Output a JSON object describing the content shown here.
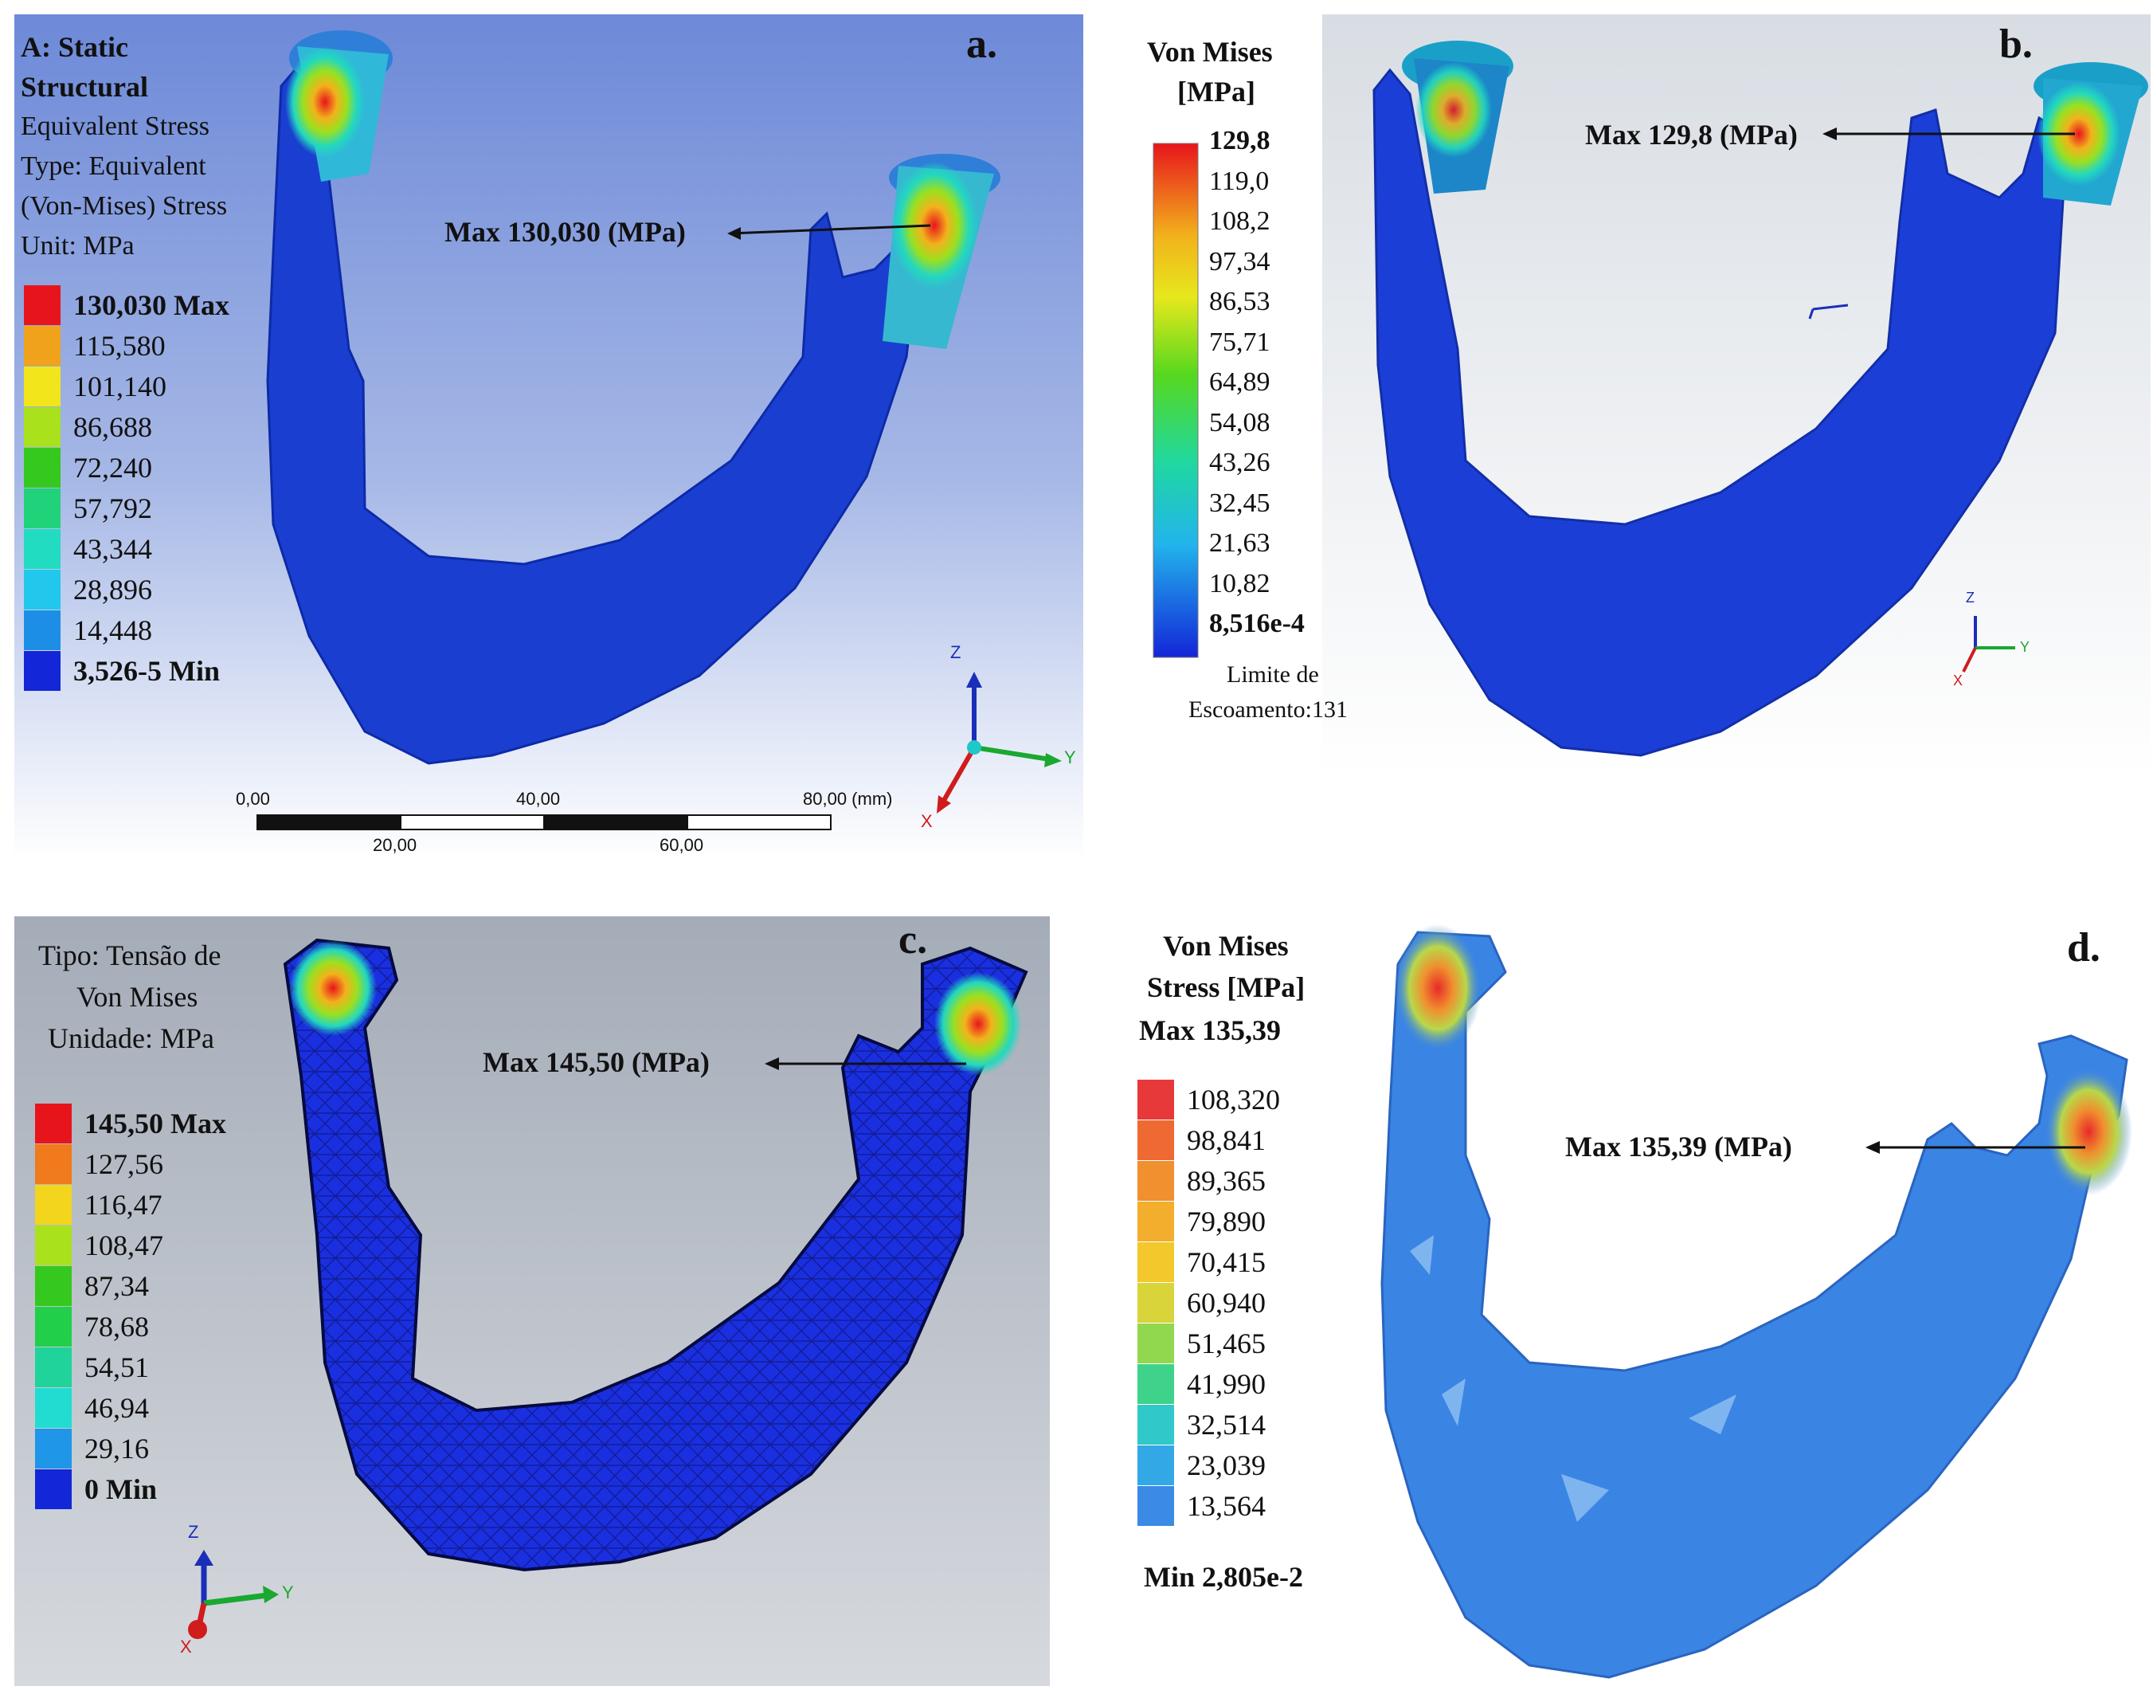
{
  "panels": {
    "a": {
      "letter": "a.",
      "title_line1": "A: Static",
      "title_line2": "Structural",
      "subtitle_line1": "Equivalent Stress",
      "subtitle_line2": "Type: Equivalent",
      "subtitle_line3": "(Von-Mises) Stress",
      "subtitle_line4": "Unit: MPa",
      "legend": [
        {
          "label": "130,030 Max",
          "color": "#e8141c"
        },
        {
          "label": "115,580",
          "color": "#f0a21c"
        },
        {
          "label": "101,140",
          "color": "#f2e51c"
        },
        {
          "label": "86,688",
          "color": "#a9e21c"
        },
        {
          "label": "72,240",
          "color": "#35c81e"
        },
        {
          "label": "57,792",
          "color": "#20d37a"
        },
        {
          "label": "43,344",
          "color": "#22dcc2"
        },
        {
          "label": "28,896",
          "color": "#21c8ec"
        },
        {
          "label": "14,448",
          "color": "#1d8ee6"
        },
        {
          "label": "3,526-5 Min",
          "color": "#1326d8"
        }
      ],
      "max_label": "Max 130,030 (MPa)",
      "scale": {
        "top_ticks": [
          "0,00",
          "40,00",
          "80,00 (mm)"
        ],
        "bottom_ticks": [
          "20,00",
          "60,00"
        ]
      },
      "axes": {
        "z": "Z",
        "y": "Y",
        "x": "X"
      },
      "bg_color": "#6f8fd6",
      "mesh_color": "#1a3fd0"
    },
    "b": {
      "letter": "b.",
      "legend_title_line1": "Von Mises",
      "legend_title_line2": "[MPa]",
      "ticks": [
        "129,8",
        "119,0",
        "108,2",
        "97,34",
        "86,53",
        "75,71",
        "64,89",
        "54,08",
        "43,26",
        "32,45",
        "21,63",
        "10,82",
        "8,516e-4"
      ],
      "limit_line1": "Limite de",
      "limit_line2": "Escoamento:131",
      "max_label": "Max 129,8 (MPa)",
      "axes": {
        "z": "Z",
        "y": "Y",
        "x": "X"
      },
      "mesh_color": "#1b3fd6"
    },
    "c": {
      "letter": "c.",
      "title_line1": "Tipo: Tensão de",
      "title_line2": "Von Mises",
      "title_line3": "Unidade: MPa",
      "legend": [
        {
          "label": "145,50 Max",
          "color": "#e8141c"
        },
        {
          "label": "127,56",
          "color": "#f07a1c"
        },
        {
          "label": "116,47",
          "color": "#f2d51c"
        },
        {
          "label": "108,47",
          "color": "#a9e21c"
        },
        {
          "label": "87,34",
          "color": "#35c81e"
        },
        {
          "label": "78,68",
          "color": "#22cf4a"
        },
        {
          "label": "54,51",
          "color": "#20d39a"
        },
        {
          "label": "46,94",
          "color": "#22dcd2"
        },
        {
          "label": "29,16",
          "color": "#1f96e8"
        },
        {
          "label": "0 Min",
          "color": "#1326d8"
        }
      ],
      "max_label": "Max 145,50 (MPa)",
      "axes": {
        "z": "Z",
        "y": "Y",
        "x": "X"
      },
      "mesh_color": "#1a2fe0"
    },
    "d": {
      "letter": "d.",
      "legend_title_line1": "Von Mises",
      "legend_title_line2": "Stress [MPa]",
      "max_text": "Max 135,39",
      "legend": [
        {
          "label": "108,320",
          "color": "#e8393a"
        },
        {
          "label": "98,841",
          "color": "#ee6a32"
        },
        {
          "label": "89,365",
          "color": "#f0902e"
        },
        {
          "label": "79,890",
          "color": "#f2ae2c"
        },
        {
          "label": "70,415",
          "color": "#f2c82c"
        },
        {
          "label": "60,940",
          "color": "#d8d43a"
        },
        {
          "label": "51,465",
          "color": "#92d84e"
        },
        {
          "label": "41,990",
          "color": "#3fd28a"
        },
        {
          "label": "32,514",
          "color": "#30c8c8"
        },
        {
          "label": "23,039",
          "color": "#33a8e6"
        },
        {
          "label": "13,564",
          "color": "#3a8ae6"
        }
      ],
      "min_text": "Min 2,805e-2",
      "max_label": "Max 135,39 (MPa)",
      "mesh_color": "#3a84e4"
    }
  }
}
